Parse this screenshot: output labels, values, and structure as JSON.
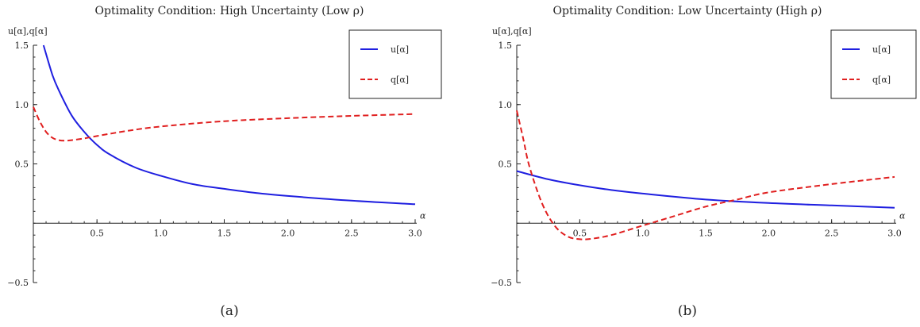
{
  "chart_data": [
    {
      "type": "line",
      "title": "Optimality Condition: High Uncertainty (Low ρ)",
      "ylabel": "u[α],q[α]",
      "xlabel": "α",
      "caption": "(a)",
      "xlim": [
        0,
        3.0
      ],
      "ylim": [
        -0.5,
        1.5
      ],
      "xticks": [
        "0.5",
        "1.0",
        "1.5",
        "2.0",
        "2.5",
        "3.0"
      ],
      "xtick_values": [
        0.5,
        1.0,
        1.5,
        2.0,
        2.5,
        3.0
      ],
      "yticks": [
        "−0.5",
        "0.5",
        "1.0",
        "1.5"
      ],
      "ytick_values": [
        -0.5,
        0.5,
        1.0,
        1.5
      ],
      "legend_placement": "top-right",
      "grid": false,
      "series": [
        {
          "name": "u[α]",
          "color": "#1f1fe0",
          "dash": "solid",
          "x": [
            0.08,
            0.15,
            0.2,
            0.3,
            0.4,
            0.5,
            0.6,
            0.8,
            1.0,
            1.25,
            1.5,
            1.75,
            2.0,
            2.5,
            3.0
          ],
          "y": [
            1.5,
            1.25,
            1.12,
            0.91,
            0.77,
            0.66,
            0.58,
            0.47,
            0.4,
            0.33,
            0.29,
            0.255,
            0.23,
            0.19,
            0.16
          ]
        },
        {
          "name": "q[α]",
          "color": "#e01f1f",
          "dash": "dashed",
          "x": [
            0.0,
            0.05,
            0.1,
            0.15,
            0.2,
            0.25,
            0.3,
            0.4,
            0.5,
            0.75,
            1.0,
            1.5,
            2.0,
            2.5,
            3.0
          ],
          "y": [
            0.98,
            0.86,
            0.77,
            0.72,
            0.7,
            0.695,
            0.7,
            0.715,
            0.735,
            0.78,
            0.815,
            0.86,
            0.885,
            0.905,
            0.92
          ]
        }
      ]
    },
    {
      "type": "line",
      "title": "Optimality Condition: Low Uncertainty (High ρ)",
      "ylabel": "u[α],q[α]",
      "xlabel": "α",
      "caption": "(b)",
      "xlim": [
        0,
        3.0
      ],
      "ylim": [
        -0.5,
        1.5
      ],
      "xticks": [
        "0.5",
        "1.0",
        "1.5",
        "2.0",
        "2.5",
        "3.0"
      ],
      "xtick_values": [
        0.5,
        1.0,
        1.5,
        2.0,
        2.5,
        3.0
      ],
      "yticks": [
        "−0.5",
        "0.5",
        "1.0",
        "1.5"
      ],
      "ytick_values": [
        -0.5,
        0.5,
        1.0,
        1.5
      ],
      "legend_placement": "top-right",
      "grid": false,
      "series": [
        {
          "name": "u[α]",
          "color": "#1f1fe0",
          "dash": "solid",
          "x": [
            0.0,
            0.25,
            0.5,
            0.75,
            1.0,
            1.5,
            2.0,
            2.5,
            3.0
          ],
          "y": [
            0.44,
            0.37,
            0.32,
            0.28,
            0.25,
            0.2,
            0.17,
            0.15,
            0.13
          ]
        },
        {
          "name": "q[α]",
          "color": "#e01f1f",
          "dash": "dashed",
          "x": [
            0.0,
            0.05,
            0.1,
            0.2,
            0.3,
            0.4,
            0.5,
            0.6,
            0.75,
            1.0,
            1.25,
            1.5,
            1.75,
            2.0,
            2.5,
            3.0
          ],
          "y": [
            0.95,
            0.72,
            0.48,
            0.17,
            -0.02,
            -0.11,
            -0.135,
            -0.13,
            -0.1,
            -0.02,
            0.06,
            0.14,
            0.2,
            0.26,
            0.33,
            0.39
          ]
        }
      ]
    }
  ]
}
